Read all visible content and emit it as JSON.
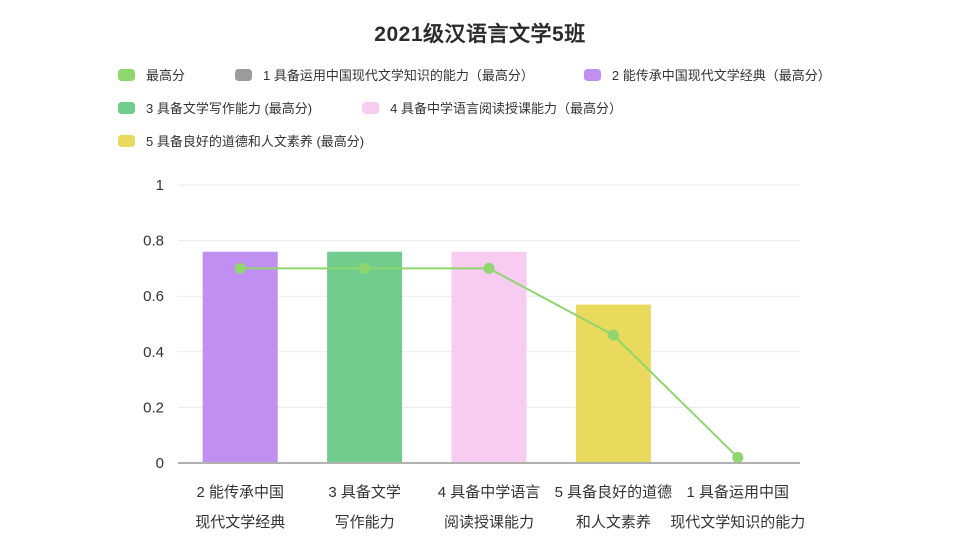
{
  "title": "2021级汉语言文学5班",
  "colors": {
    "background": "#ffffff",
    "title_text": "#2b2b2b",
    "axis_text": "#333333",
    "grid": "#eaeaea",
    "axis_line": "#b1b1b1",
    "line_green": "#8ed66d",
    "bar_gray": "#9b9b9b",
    "bar_purple": "#c18ff1",
    "bar_green": "#70cd8d",
    "bar_pink": "#f8ccf0",
    "bar_yellow": "#e9d95c"
  },
  "legend": {
    "position": "top-left",
    "rows": [
      [
        0,
        1,
        2
      ],
      [
        3,
        4
      ],
      [
        5
      ]
    ],
    "items": [
      {
        "label": "最高分",
        "color": "#8ed66d",
        "series": "line"
      },
      {
        "label": "1 具备运用中国现代文学知识的能力（最高分）",
        "color": "#9b9b9b",
        "series": "bar"
      },
      {
        "label": "2 能传承中国现代文学经典（最高分）",
        "color": "#c18ff1",
        "series": "bar"
      },
      {
        "label": "3 具备文学写作能力 (最高分)",
        "color": "#70cd8d",
        "series": "bar"
      },
      {
        "label": "4 具备中学语言阅读授课能力（最高分）",
        "color": "#f8ccf0",
        "series": "bar"
      },
      {
        "label": "5 具备良好的道德和人文素养 (最高分)",
        "color": "#e9d95c",
        "series": "bar"
      }
    ]
  },
  "chart_data": {
    "type": "bar",
    "title": "2021级汉语言文学5班",
    "xlabel": "",
    "ylabel": "",
    "ylim": [
      0,
      1
    ],
    "yticks": [
      0,
      0.2,
      0.4,
      0.6,
      0.8,
      1
    ],
    "ytick_labels": [
      "0",
      "0.2",
      "0.4",
      "0.6",
      "0.8",
      "1"
    ],
    "grid": true,
    "legend_position": "top-left",
    "categories": [
      "2 能传承中国现代文学经典",
      "3 具备文学写作能力",
      "4 具备中学语言阅读授课能力",
      "5 具备良好的道德和人文素养",
      "1 具备运用中国现代文学知识的能力"
    ],
    "category_label_lines": [
      [
        "2 能传承中国",
        "现代文学经典"
      ],
      [
        "3 具备文学",
        "写作能力"
      ],
      [
        "4 具备中学语言",
        "阅读授课能力"
      ],
      [
        "5 具备良好的道德",
        "和人文素养"
      ],
      [
        "1 具备运用中国",
        "现代文学知识的能力"
      ]
    ],
    "bars": [
      {
        "name": "2 能传承中国现代文学经典（最高分）",
        "value": 0.76,
        "color": "#c18ff1"
      },
      {
        "name": "3 具备文学写作能力 (最高分)",
        "value": 0.76,
        "color": "#70cd8d"
      },
      {
        "name": "4 具备中学语言阅读授课能力（最高分）",
        "value": 0.76,
        "color": "#f8ccf0"
      },
      {
        "name": "5 具备良好的道德和人文素养 (最高分)",
        "value": 0.57,
        "color": "#e9d95c"
      },
      {
        "name": "1 具备运用中国现代文学知识的能力（最高分）",
        "value": 0,
        "color": "#9b9b9b"
      }
    ],
    "line_series": {
      "name": "最高分",
      "color": "#8ed66d",
      "values": [
        0.7,
        0.7,
        0.7,
        0.46,
        0.02
      ]
    }
  }
}
